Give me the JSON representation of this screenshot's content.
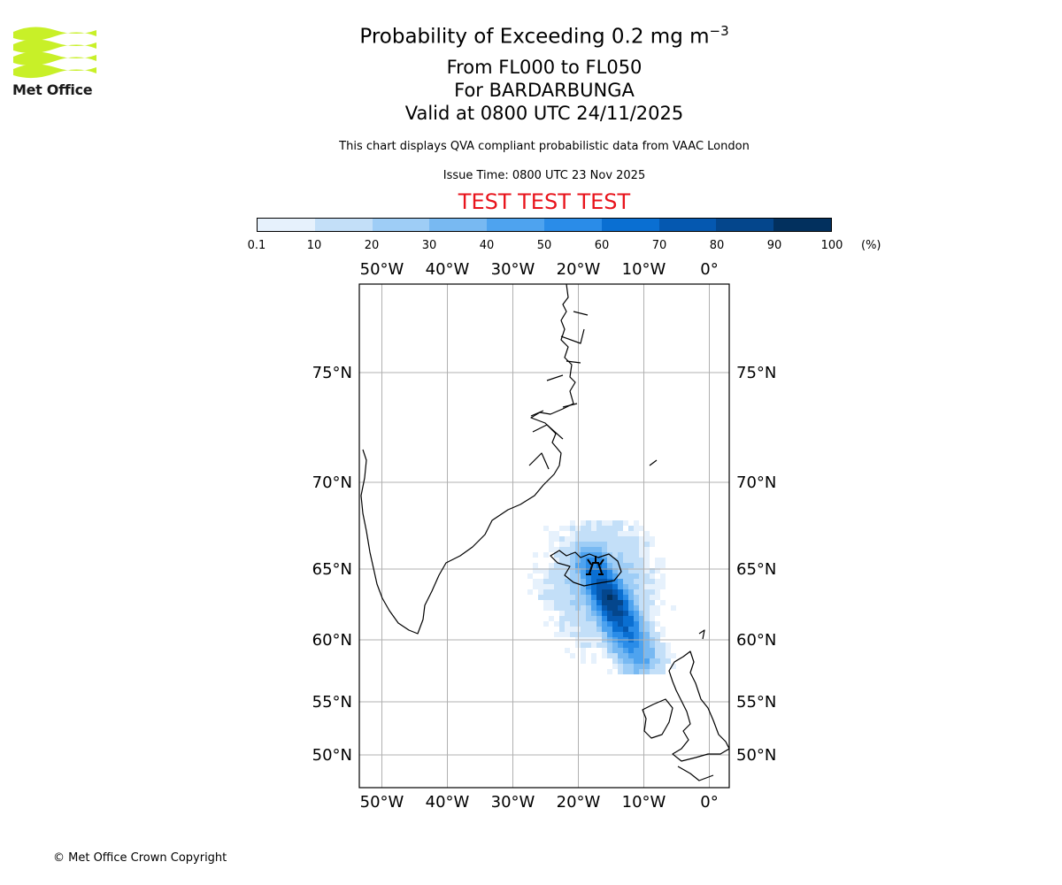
{
  "logo": {
    "text": "Met Office",
    "color": "#c8f028",
    "icon": "met-office-wave-logo"
  },
  "header": {
    "title_main": "Probability of Exceeding 0.2 mg m",
    "title_sup": "−3",
    "level_range": "From FL000 to FL050",
    "volcano": "For BARDARBUNGA",
    "valid_time": "Valid at 0800 UTC 24/11/2025",
    "description": "This chart displays QVA compliant probabilistic data from VAAC London",
    "issue_time": "Issue Time: 0800 UTC 23 Nov 2025",
    "test_banner": "TEST TEST TEST",
    "test_color": "#e8141c"
  },
  "colorbar": {
    "ticks": [
      "0.1",
      "10",
      "20",
      "30",
      "40",
      "50",
      "60",
      "70",
      "80",
      "90",
      "100"
    ],
    "unit": "(%)",
    "colors": [
      "#e6f1fc",
      "#c3dff8",
      "#9ecdf6",
      "#78b9f2",
      "#4ea3ef",
      "#2a8ce8",
      "#0a6fd2",
      "#0558b0",
      "#04468c",
      "#02305e"
    ]
  },
  "map": {
    "lon_ticks": [
      "50°W",
      "40°W",
      "30°W",
      "20°W",
      "10°W",
      "0°"
    ],
    "lat_ticks": [
      "75°N",
      "70°N",
      "65°N",
      "60°N",
      "55°N",
      "50°N"
    ],
    "lon_values": [
      -50,
      -40,
      -30,
      -20,
      -10,
      0
    ],
    "lat_values": [
      75,
      70,
      65,
      60,
      55,
      50
    ],
    "volcano_symbol": "volcano-icon",
    "gridline_color": "#b0b0b0"
  },
  "footer": {
    "copyright": "© Met Office Crown Copyright"
  }
}
